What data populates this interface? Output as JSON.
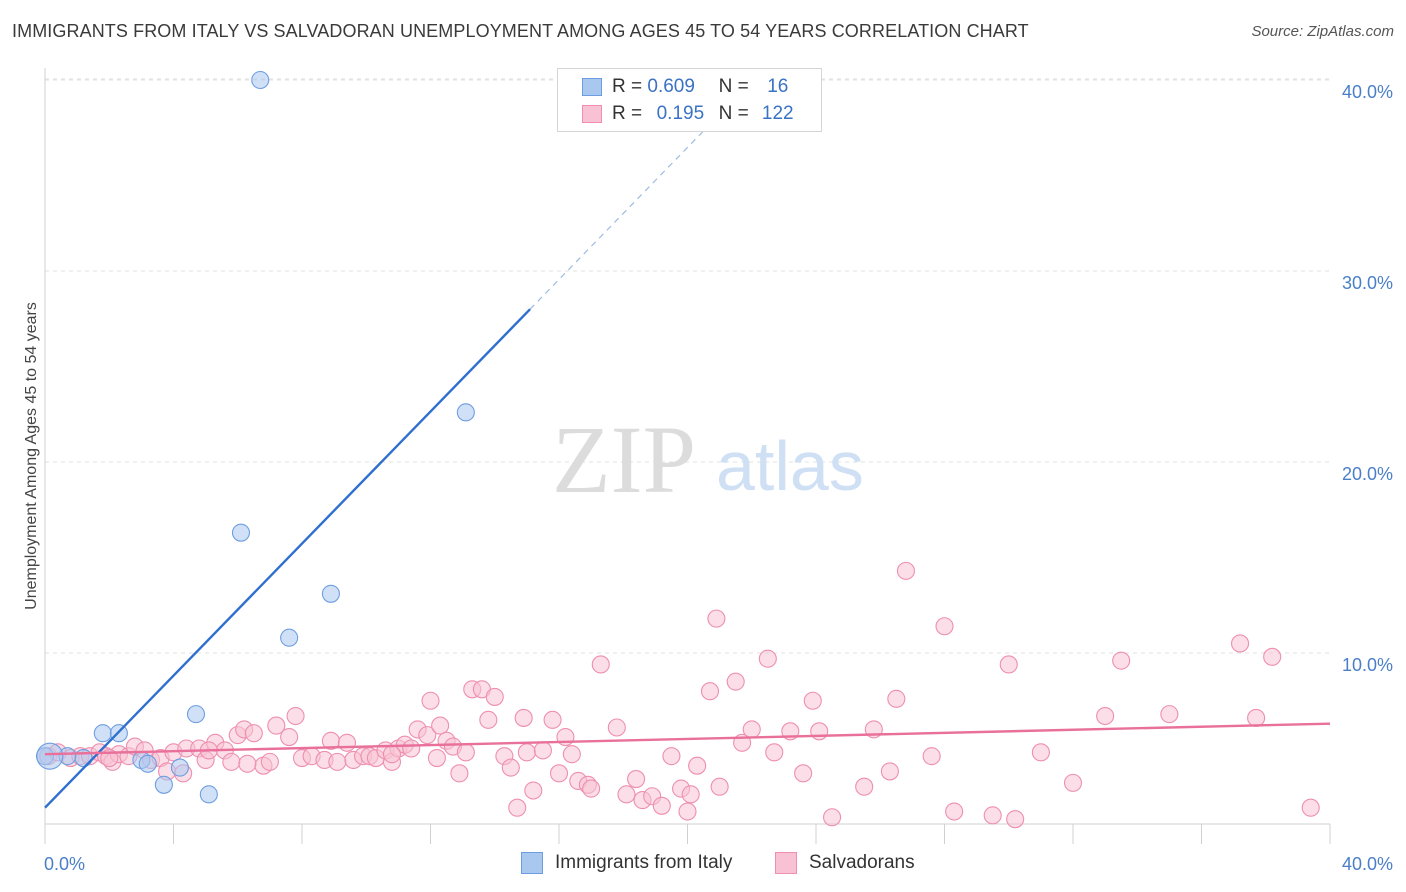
{
  "header": {
    "title": "IMMIGRANTS FROM ITALY VS SALVADORAN UNEMPLOYMENT AMONG AGES 45 TO 54 YEARS CORRELATION CHART",
    "source": "Source: ZipAtlas.com"
  },
  "watermark": {
    "zip": "ZIP",
    "atlas": "atlas"
  },
  "legend": {
    "rows": [
      {
        "r_label": "R =",
        "r_value": "0.609",
        "n_label": "N =",
        "n_value": "16",
        "color": "#a9c8f0",
        "border": "#6f9ee0"
      },
      {
        "r_label": "R =",
        "r_value": "0.195",
        "n_label": "N =",
        "n_value": "122",
        "color": "#f8c2d4",
        "border": "#ee8fb0"
      }
    ]
  },
  "bottom_legend": {
    "items": [
      {
        "label": "Immigrants from Italy",
        "color": "#a9c8f0",
        "border": "#6f9ee0"
      },
      {
        "label": "Salvadorans",
        "color": "#f8c2d4",
        "border": "#ee8fb0"
      }
    ]
  },
  "chart_data": {
    "type": "scatter",
    "title": "IMMIGRANTS FROM ITALY VS SALVADORAN UNEMPLOYMENT AMONG AGES 45 TO 54 YEARS CORRELATION CHART",
    "xlabel": "",
    "ylabel": "Unemployment Among Ages 45 to 54 years",
    "xlim": [
      0,
      40
    ],
    "ylim": [
      0,
      41
    ],
    "x_tick_labels": [
      "0.0%",
      "40.0%"
    ],
    "y_ticks": [
      10,
      20,
      30,
      40
    ],
    "y_tick_labels": [
      "10.0%",
      "20.0%",
      "30.0%",
      "40.0%"
    ],
    "grid": true,
    "legend_position": "top-center",
    "series": [
      {
        "name": "Immigrants from Italy",
        "color": "#a9c8f0",
        "stroke": "#6f9ee0",
        "trend_color": "#2f6fcf",
        "trend": {
          "x0": 0,
          "y0": 1.9,
          "x1": 15.1,
          "y1": 28.0,
          "dash_to_x": 21.5
        },
        "points": [
          [
            0.0,
            4.6
          ],
          [
            0.7,
            4.6
          ],
          [
            1.8,
            5.8
          ],
          [
            2.3,
            5.8
          ],
          [
            3.0,
            4.4
          ],
          [
            3.2,
            4.2
          ],
          [
            3.7,
            3.1
          ],
          [
            4.2,
            4.0
          ],
          [
            4.7,
            6.8
          ],
          [
            5.1,
            2.6
          ],
          [
            6.1,
            16.3
          ],
          [
            6.7,
            40.0
          ],
          [
            7.6,
            10.8
          ],
          [
            8.9,
            13.1
          ],
          [
            13.1,
            22.6
          ],
          [
            1.2,
            4.5
          ]
        ]
      },
      {
        "name": "Salvadorans",
        "color": "#f8c2d4",
        "stroke": "#ee8fb0",
        "trend_color": "#e8709a",
        "trend": {
          "x0": 0,
          "y0": 4.7,
          "x1": 40,
          "y1": 6.3
        },
        "points": [
          [
            0.1,
            4.6
          ],
          [
            0.4,
            4.8
          ],
          [
            0.8,
            4.5
          ],
          [
            1.1,
            4.6
          ],
          [
            1.4,
            4.6
          ],
          [
            1.7,
            4.8
          ],
          [
            1.9,
            4.6
          ],
          [
            2.1,
            4.3
          ],
          [
            2.3,
            4.7
          ],
          [
            2.6,
            4.6
          ],
          [
            2.8,
            5.1
          ],
          [
            3.1,
            4.9
          ],
          [
            3.3,
            4.4
          ],
          [
            3.6,
            4.5
          ],
          [
            3.8,
            3.8
          ],
          [
            4.0,
            4.8
          ],
          [
            4.3,
            3.7
          ],
          [
            4.4,
            5.0
          ],
          [
            4.8,
            5.0
          ],
          [
            5.0,
            4.4
          ],
          [
            5.3,
            5.3
          ],
          [
            5.6,
            4.9
          ],
          [
            5.8,
            4.3
          ],
          [
            6.0,
            5.7
          ],
          [
            6.2,
            6.0
          ],
          [
            6.5,
            5.8
          ],
          [
            6.8,
            4.1
          ],
          [
            7.0,
            4.3
          ],
          [
            7.2,
            6.2
          ],
          [
            7.6,
            5.6
          ],
          [
            7.8,
            6.7
          ],
          [
            8.0,
            4.5
          ],
          [
            8.3,
            4.6
          ],
          [
            8.7,
            4.4
          ],
          [
            8.9,
            5.4
          ],
          [
            9.1,
            4.3
          ],
          [
            9.4,
            5.3
          ],
          [
            9.6,
            4.4
          ],
          [
            9.9,
            4.6
          ],
          [
            10.1,
            4.6
          ],
          [
            10.3,
            4.5
          ],
          [
            10.6,
            4.9
          ],
          [
            10.8,
            4.3
          ],
          [
            11.0,
            5.0
          ],
          [
            11.2,
            5.2
          ],
          [
            11.4,
            5.0
          ],
          [
            11.6,
            6.0
          ],
          [
            11.9,
            5.7
          ],
          [
            12.0,
            7.5
          ],
          [
            12.2,
            4.5
          ],
          [
            12.3,
            6.2
          ],
          [
            12.5,
            5.4
          ],
          [
            12.7,
            5.1
          ],
          [
            12.9,
            3.7
          ],
          [
            13.1,
            4.8
          ],
          [
            13.3,
            8.1
          ],
          [
            13.6,
            8.1
          ],
          [
            13.8,
            6.5
          ],
          [
            14.0,
            7.7
          ],
          [
            14.3,
            4.6
          ],
          [
            14.5,
            4.0
          ],
          [
            14.7,
            1.9
          ],
          [
            14.9,
            6.6
          ],
          [
            15.0,
            4.8
          ],
          [
            15.2,
            2.8
          ],
          [
            15.5,
            4.9
          ],
          [
            15.8,
            6.5
          ],
          [
            16.0,
            3.7
          ],
          [
            16.2,
            5.6
          ],
          [
            16.4,
            4.7
          ],
          [
            16.6,
            3.3
          ],
          [
            16.9,
            3.1
          ],
          [
            17.0,
            2.9
          ],
          [
            17.3,
            9.4
          ],
          [
            17.8,
            6.1
          ],
          [
            18.1,
            2.6
          ],
          [
            18.4,
            3.4
          ],
          [
            18.6,
            2.3
          ],
          [
            18.9,
            2.5
          ],
          [
            19.2,
            2.0
          ],
          [
            19.5,
            4.6
          ],
          [
            19.8,
            2.9
          ],
          [
            20.0,
            1.7
          ],
          [
            20.1,
            2.6
          ],
          [
            20.3,
            4.1
          ],
          [
            20.7,
            8.0
          ],
          [
            20.9,
            11.8
          ],
          [
            21.0,
            3.0
          ],
          [
            21.5,
            8.5
          ],
          [
            21.7,
            5.3
          ],
          [
            22.0,
            6.0
          ],
          [
            22.5,
            9.7
          ],
          [
            22.7,
            4.8
          ],
          [
            23.2,
            5.9
          ],
          [
            23.6,
            3.7
          ],
          [
            23.9,
            7.5
          ],
          [
            24.1,
            5.9
          ],
          [
            24.5,
            1.4
          ],
          [
            25.5,
            3.0
          ],
          [
            25.8,
            6.0
          ],
          [
            26.3,
            3.8
          ],
          [
            26.5,
            7.6
          ],
          [
            26.8,
            14.3
          ],
          [
            27.6,
            4.6
          ],
          [
            28.0,
            11.4
          ],
          [
            28.3,
            1.7
          ],
          [
            29.5,
            1.5
          ],
          [
            30.0,
            9.4
          ],
          [
            30.2,
            1.3
          ],
          [
            31.0,
            4.8
          ],
          [
            32.0,
            3.2
          ],
          [
            33.0,
            6.7
          ],
          [
            33.5,
            9.6
          ],
          [
            35.0,
            6.8
          ],
          [
            37.2,
            10.5
          ],
          [
            37.7,
            6.6
          ],
          [
            38.2,
            9.8
          ],
          [
            39.4,
            1.9
          ],
          [
            10.8,
            4.7
          ],
          [
            5.1,
            4.9
          ],
          [
            6.3,
            4.2
          ],
          [
            2.0,
            4.5
          ]
        ]
      }
    ]
  }
}
